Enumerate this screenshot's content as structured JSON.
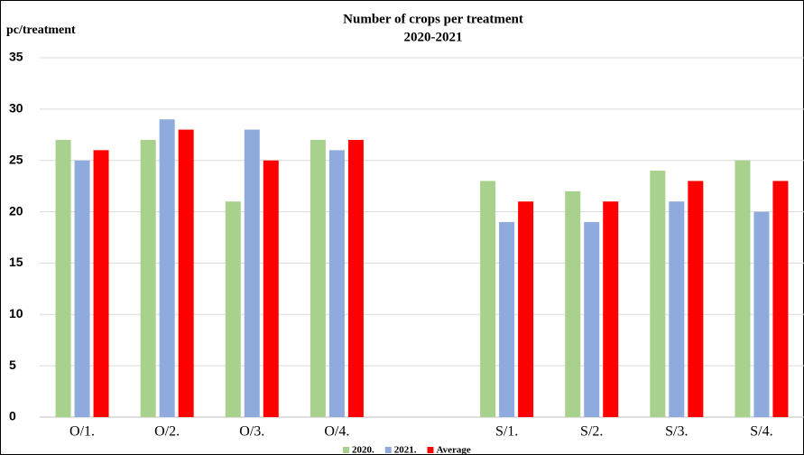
{
  "chart_data": {
    "type": "bar",
    "title": "Number of crops per treatment",
    "subtitle": "2020-2021",
    "y_label": "pc/treatment",
    "categories": [
      "O/1.",
      "O/2.",
      "O/3.",
      "O/4.",
      null,
      "S/1.",
      "S/2.",
      "S/3.",
      "S/4."
    ],
    "series": [
      {
        "name": "2020.",
        "color": "#a9d18e",
        "values": [
          27,
          27,
          21,
          27,
          null,
          23,
          22,
          24,
          25
        ]
      },
      {
        "name": "2021.",
        "color": "#8faadc",
        "values": [
          25,
          29,
          28,
          26,
          null,
          19,
          19,
          21,
          20
        ]
      },
      {
        "name": "Average",
        "color": "#ff0000",
        "values": [
          26,
          28,
          25,
          27,
          null,
          21,
          21,
          23,
          23
        ]
      }
    ],
    "ylim": [
      0,
      35
    ],
    "yticks": [
      0,
      5,
      10,
      15,
      20,
      25,
      30,
      35
    ],
    "grid": true
  }
}
